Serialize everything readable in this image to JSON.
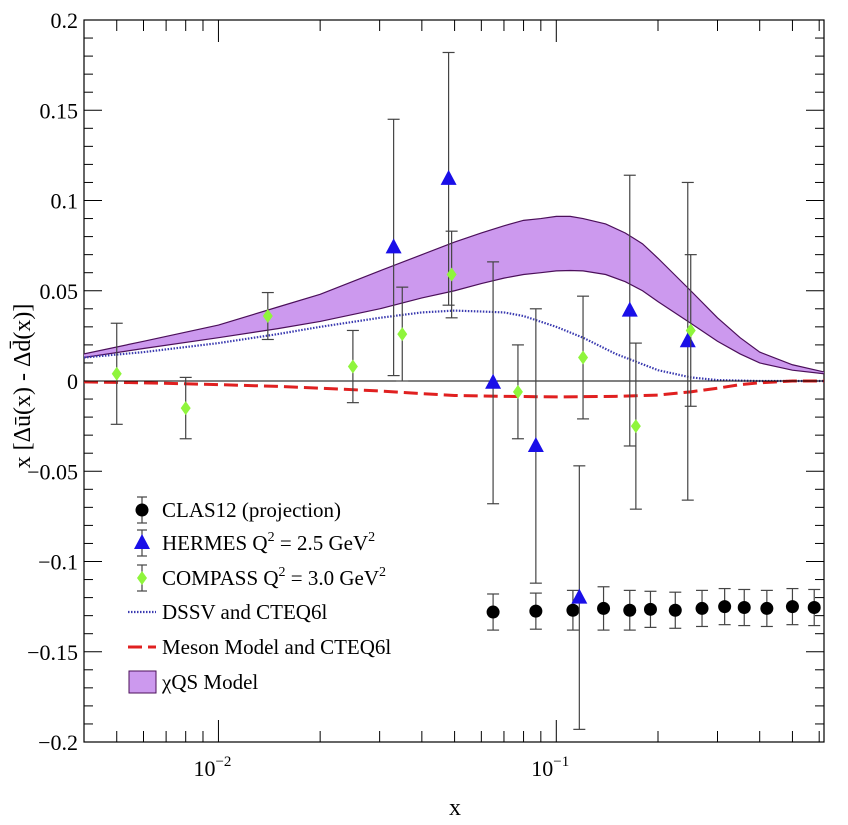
{
  "chart_data": {
    "type": "scatter",
    "title": "",
    "xlabel": "x",
    "ylabel": "x [Δū(x) - Δd̄(x)]",
    "xscale": "log",
    "xlim": [
      0.004,
      0.62
    ],
    "ylim": [
      -0.2,
      0.2
    ],
    "x_tick_labels": [
      {
        "x": 0.01,
        "base": "10",
        "exp": "−2"
      },
      {
        "x": 0.1,
        "base": "10",
        "exp": "−1"
      }
    ],
    "y_ticks": [
      -0.2,
      -0.15,
      -0.1,
      -0.05,
      0,
      0.05,
      0.1,
      0.15,
      0.2
    ],
    "y_tick_labels": [
      "−0.2",
      "−0.15",
      "−0.1",
      "−0.05",
      "0",
      "0.05",
      "0.1",
      "0.15",
      "0.2"
    ],
    "legend_position": "bottom-left",
    "colors": {
      "clas12": "#000000",
      "hermes": "#1a0fe8",
      "compass": "#8ff53c",
      "dssv": "#3a3ab0",
      "meson": "#e02020",
      "chiqs_fill": "#cc99ee",
      "chiqs_line": "#4b0f5a",
      "errorbar": "#444444"
    },
    "legend": [
      {
        "key": "clas12",
        "label": "CLAS12 (projection)",
        "sup": "",
        "tail": ""
      },
      {
        "key": "hermes",
        "label": "HERMES Q",
        "sup": "2",
        "tail": " = 2.5 GeV",
        "sup2": "2"
      },
      {
        "key": "compass",
        "label": "COMPASS Q",
        "sup": "2",
        "tail": " = 3.0 GeV",
        "sup2": "2"
      },
      {
        "key": "dssv",
        "label": "DSSV and CTEQ6l",
        "sup": "",
        "tail": ""
      },
      {
        "key": "meson",
        "label": "Meson Model and CTEQ6l",
        "sup": "",
        "tail": ""
      },
      {
        "key": "chiqs",
        "label": "χQS Model",
        "sup": "",
        "tail": ""
      }
    ],
    "series": [
      {
        "name": "CLAS12 (projection)",
        "kind": "points",
        "marker": "circle",
        "x": [
          0.065,
          0.087,
          0.112,
          0.138,
          0.165,
          0.19,
          0.225,
          0.27,
          0.315,
          0.36,
          0.42,
          0.5,
          0.58
        ],
        "y": [
          -0.128,
          -0.1275,
          -0.127,
          -0.126,
          -0.127,
          -0.1265,
          -0.127,
          -0.126,
          -0.125,
          -0.1255,
          -0.126,
          -0.125,
          -0.1255
        ],
        "err": [
          0.01,
          0.01,
          0.011,
          0.012,
          0.011,
          0.01,
          0.01,
          0.01,
          0.01,
          0.01,
          0.01,
          0.01,
          0.01
        ]
      },
      {
        "name": "HERMES Q2 = 2.5 GeV2",
        "kind": "points",
        "marker": "triangle",
        "x": [
          0.033,
          0.048,
          0.065,
          0.087,
          0.117,
          0.165,
          0.245
        ],
        "y": [
          0.074,
          0.112,
          -0.001,
          -0.036,
          -0.12,
          0.039,
          0.022
        ],
        "err": [
          0.071,
          0.07,
          0.067,
          0.076,
          0.073,
          0.075,
          0.088
        ]
      },
      {
        "name": "COMPASS Q2 = 3.0 GeV2",
        "kind": "points",
        "marker": "diamond",
        "x": [
          0.005,
          0.008,
          0.014,
          0.025,
          0.035,
          0.049,
          0.077,
          0.12,
          0.172,
          0.25
        ],
        "y": [
          0.004,
          -0.015,
          0.036,
          0.008,
          0.026,
          0.059,
          -0.006,
          0.013,
          -0.025,
          0.028
        ],
        "err": [
          0.028,
          0.017,
          0.013,
          0.02,
          0.026,
          0.024,
          0.026,
          0.034,
          0.046,
          0.042
        ]
      },
      {
        "name": "DSSV and CTEQ6l",
        "kind": "curve",
        "style": "dotted",
        "x": [
          0.004,
          0.006,
          0.01,
          0.015,
          0.02,
          0.03,
          0.04,
          0.05,
          0.06,
          0.07,
          0.08,
          0.1,
          0.12,
          0.15,
          0.2,
          0.25,
          0.3,
          0.4,
          0.5,
          0.62
        ],
        "y": [
          0.013,
          0.016,
          0.021,
          0.026,
          0.03,
          0.035,
          0.038,
          0.039,
          0.0385,
          0.038,
          0.036,
          0.03,
          0.024,
          0.015,
          0.006,
          0.002,
          0.0005,
          0.0,
          0.0,
          0.0
        ]
      },
      {
        "name": "Meson Model and CTEQ6l",
        "kind": "curve",
        "style": "dashed",
        "x": [
          0.004,
          0.006,
          0.01,
          0.015,
          0.02,
          0.03,
          0.04,
          0.05,
          0.07,
          0.1,
          0.15,
          0.2,
          0.25,
          0.3,
          0.35,
          0.4,
          0.5,
          0.62
        ],
        "y": [
          -0.0005,
          -0.001,
          -0.002,
          -0.003,
          -0.004,
          -0.0055,
          -0.007,
          -0.008,
          -0.0085,
          -0.0088,
          -0.0085,
          -0.0078,
          -0.006,
          -0.004,
          -0.002,
          -0.001,
          0.0,
          0.0
        ]
      },
      {
        "name": "χQS Model",
        "kind": "band",
        "x": [
          0.004,
          0.006,
          0.01,
          0.015,
          0.02,
          0.03,
          0.04,
          0.05,
          0.06,
          0.07,
          0.08,
          0.09,
          0.1,
          0.11,
          0.12,
          0.14,
          0.16,
          0.18,
          0.2,
          0.25,
          0.3,
          0.35,
          0.4,
          0.5,
          0.62
        ],
        "upper": [
          0.015,
          0.022,
          0.031,
          0.041,
          0.048,
          0.061,
          0.07,
          0.077,
          0.082,
          0.086,
          0.089,
          0.09,
          0.0912,
          0.0912,
          0.09,
          0.087,
          0.082,
          0.076,
          0.068,
          0.05,
          0.035,
          0.024,
          0.016,
          0.009,
          0.005
        ],
        "lower": [
          0.013,
          0.018,
          0.024,
          0.029,
          0.033,
          0.04,
          0.046,
          0.05,
          0.054,
          0.057,
          0.059,
          0.06,
          0.061,
          0.0612,
          0.061,
          0.059,
          0.055,
          0.05,
          0.044,
          0.032,
          0.022,
          0.015,
          0.01,
          0.006,
          0.004
        ]
      }
    ]
  }
}
